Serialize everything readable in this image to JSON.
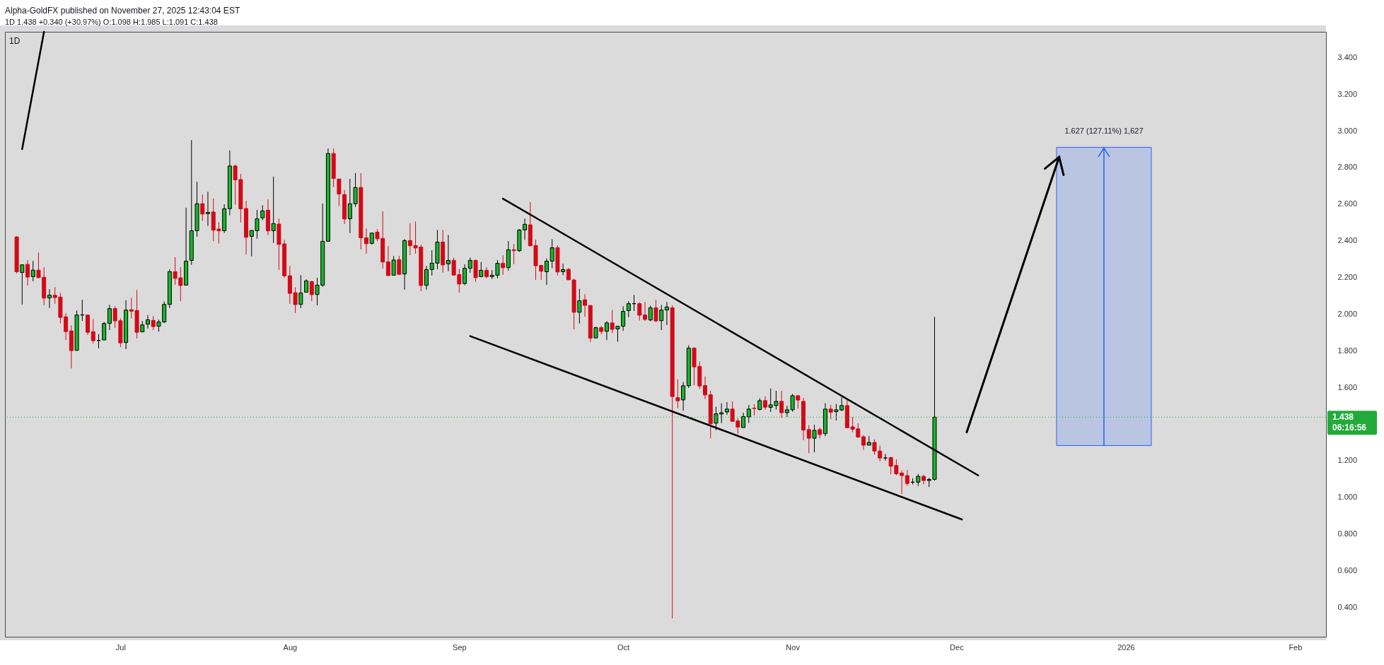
{
  "chart_data": {
    "type": "candlestick",
    "title": "Alpha-GoldFX published on November 27, 2025 12:43:04 EST",
    "subtitle": "1D 1.438 +0.340 (+30.97%) O:1.098 H:1.985 L:1.091 C:1.438",
    "annotations": [
      "1D",
      "06:16:56",
      {
        "text": "1.627 (127.11%) 1,627",
        "x": "2025-12-28",
        "y": 2.91
      }
    ],
    "colors": [
      "#d20a17",
      "#17b52a",
      "#d20a17",
      "#17b52a",
      "#d20a17",
      "#d20a17",
      "#17b52a",
      "#d20a17",
      "#d20a17",
      "#d20a17",
      "#d20a17",
      "#17b52a",
      "#17b52a",
      "#d20a17",
      "#d20a17",
      "#000000",
      "#17b52a",
      "#17b52a",
      "#d20a17",
      "#d20a17",
      "#17b52a",
      "#d20a17",
      "#d20a17",
      "#17b52a",
      "#17b52a",
      "#d20a17",
      "#17b52a",
      "#17b52a",
      "#17b52a",
      "#d20a17",
      "#d20a17",
      "#17b52a",
      "#17b52a",
      "#17b52a",
      "#d20a17",
      "#17b52a",
      "#d20a17",
      "#d20a17",
      "#17b52a",
      "#17b52a",
      "#d20a17",
      "#d20a17",
      "#d20a17",
      "#17b52a",
      "#17b52a",
      "#17b52a",
      "#d20a17",
      "#17b52a",
      "#d20a17",
      "#d20a17",
      "#d20a17",
      "#d20a17",
      "#17b52a",
      "#17b52a",
      "#d20a17",
      "#17b52a",
      "#17b52a",
      "#17b52a",
      "#d20a17",
      "#d20a17",
      "#d20a17",
      "#17b52a",
      "#17b52a",
      "#d20a17",
      "#d20a17",
      "#17b52a",
      "#d20a17",
      "#d20a17",
      "#d20a17",
      "#17b52a",
      "#d20a17",
      "#17b52a",
      "#d20a17",
      "#d20a17",
      "#d20a17",
      "#17b52a",
      "#17b52a",
      "#17b52a",
      "#d20a17",
      "#17b52a",
      "#d20a17",
      "#d20a17",
      "#17b52a",
      "#17b52a",
      "#d20a17",
      "#17b52a",
      "#d20a17",
      "#17b52a",
      "#17b52a",
      "#d20a17",
      "#17b52a",
      "#d20a17",
      "#17b52a",
      "#17b52a",
      "#d20a17",
      "#d20a17",
      "#d20a17",
      "#17b52a",
      "#17b52a",
      "#d20a17",
      "#17b52a",
      "#d20a17",
      "#d20a17",
      "#17b52a",
      "#d20a17",
      "#d20a17",
      "#17b52a",
      "#d20a17",
      "#17b52a",
      "#d20a17",
      "#17b52a",
      "#17b52a",
      "#17b52a",
      "#000000",
      "#d20a17",
      "#d20a17",
      "#17b52a",
      "#d20a17",
      "#17b52a",
      "#17b52a",
      "#d20a17",
      "#d20a17",
      "#17b52a",
      "#17b52a",
      "#d20a17",
      "#d20a17",
      "#d20a17",
      "#d20a17",
      "#17b52a",
      "#17b52a",
      "#17b52a",
      "#d20a17",
      "#d20a17",
      "#17b52a",
      "#17b52a",
      "#d20a17",
      "#17b52a",
      "#d20a17",
      "#17b52a",
      "#17b52a",
      "#d20a17",
      "#17b52a",
      "#17b52a",
      "#d20a17",
      "#d20a17",
      "#d20a17",
      "#17b52a",
      "#d20a17",
      "#17b52a",
      "#d20a17",
      "#17b52a",
      "#17b52a",
      "#d20a17",
      "#d20a17",
      "#d20a17",
      "#d20a17",
      "#17b52a",
      "#d20a17",
      "#d20a17",
      "#000000",
      "#d20a17",
      "#d20a17",
      "#d20a17",
      "#d20a17",
      "#000000",
      "#17b52a",
      "#d20a17",
      "#17b52a",
      "#17b52a"
    ],
    "xlim": [
      "2025-06-10T12:00",
      "2026-02-06"
    ],
    "xticks": [
      {
        "value": "2025-07-01",
        "label": "Jul"
      },
      {
        "value": "2025-08-01",
        "label": "Aug"
      },
      {
        "value": "2025-09-01",
        "label": "Sep"
      },
      {
        "value": "2025-10-01",
        "label": "Oct"
      },
      {
        "value": "2025-11-01",
        "label": "Nov"
      },
      {
        "value": "2025-12-01",
        "label": "Dec"
      },
      {
        "value": "2026-01-01",
        "label": "2026"
      },
      {
        "value": "2026-02-01",
        "label": "Feb"
      }
    ],
    "ylim": [
      0.24,
      3.54
    ],
    "yticks": [
      {
        "value": 0.4,
        "label": "0.400"
      },
      {
        "value": 0.6,
        "label": "0.600"
      },
      {
        "value": 0.8,
        "label": "0.800"
      },
      {
        "value": 1,
        "label": "1.000"
      },
      {
        "value": 1.2,
        "label": "1.200"
      },
      {
        "value": 1.6,
        "label": "1.600"
      },
      {
        "value": 1.8,
        "label": "1.800"
      },
      {
        "value": 2,
        "label": "2.000"
      },
      {
        "value": 2.2,
        "label": "2.200"
      },
      {
        "value": 2.4,
        "label": "2.400"
      },
      {
        "value": 2.6,
        "label": "2.600"
      },
      {
        "value": 2.8,
        "label": "2.800"
      },
      {
        "value": 3,
        "label": "3.000"
      },
      {
        "value": 3.2,
        "label": "3.200"
      },
      {
        "value": 3.4,
        "label": "3.400"
      }
    ],
    "x": [
      "2025-06-12",
      "2025-06-13",
      "2025-06-14",
      "2025-06-15",
      "2025-06-16",
      "2025-06-17",
      "2025-06-18",
      "2025-06-19",
      "2025-06-20",
      "2025-06-21",
      "2025-06-22",
      "2025-06-23",
      "2025-06-24",
      "2025-06-25",
      "2025-06-26",
      "2025-06-27",
      "2025-06-28",
      "2025-06-29",
      "2025-06-30",
      "2025-07-01",
      "2025-07-02",
      "2025-07-03",
      "2025-07-04",
      "2025-07-05",
      "2025-07-06",
      "2025-07-07",
      "2025-07-08",
      "2025-07-09",
      "2025-07-10",
      "2025-07-11",
      "2025-07-12",
      "2025-07-13",
      "2025-07-14",
      "2025-07-15",
      "2025-07-16",
      "2025-07-17",
      "2025-07-18",
      "2025-07-19",
      "2025-07-20",
      "2025-07-21",
      "2025-07-22",
      "2025-07-23",
      "2025-07-24",
      "2025-07-25",
      "2025-07-26",
      "2025-07-27",
      "2025-07-28",
      "2025-07-29",
      "2025-07-30",
      "2025-07-31",
      "2025-08-01",
      "2025-08-02",
      "2025-08-03",
      "2025-08-04",
      "2025-08-05",
      "2025-08-06",
      "2025-08-07",
      "2025-08-08",
      "2025-08-09",
      "2025-08-10",
      "2025-08-11",
      "2025-08-12",
      "2025-08-13",
      "2025-08-14",
      "2025-08-15",
      "2025-08-16",
      "2025-08-17",
      "2025-08-18",
      "2025-08-19",
      "2025-08-20",
      "2025-08-21",
      "2025-08-22",
      "2025-08-23",
      "2025-08-24",
      "2025-08-25",
      "2025-08-26",
      "2025-08-27",
      "2025-08-28",
      "2025-08-29",
      "2025-08-30",
      "2025-08-31",
      "2025-09-01",
      "2025-09-02",
      "2025-09-03",
      "2025-09-04",
      "2025-09-05",
      "2025-09-06",
      "2025-09-07",
      "2025-09-08",
      "2025-09-09",
      "2025-09-10",
      "2025-09-11",
      "2025-09-12",
      "2025-09-13",
      "2025-09-14",
      "2025-09-15",
      "2025-09-16",
      "2025-09-17",
      "2025-09-18",
      "2025-09-19",
      "2025-09-20",
      "2025-09-21",
      "2025-09-22",
      "2025-09-23",
      "2025-09-24",
      "2025-09-25",
      "2025-09-26",
      "2025-09-27",
      "2025-09-28",
      "2025-09-29",
      "2025-09-30",
      "2025-10-01",
      "2025-10-02",
      "2025-10-03",
      "2025-10-04",
      "2025-10-05",
      "2025-10-06",
      "2025-10-07",
      "2025-10-08",
      "2025-10-09",
      "2025-10-10",
      "2025-10-11",
      "2025-10-12",
      "2025-10-13",
      "2025-10-14",
      "2025-10-15",
      "2025-10-16",
      "2025-10-17",
      "2025-10-18",
      "2025-10-19",
      "2025-10-20",
      "2025-10-21",
      "2025-10-22",
      "2025-10-23",
      "2025-10-24",
      "2025-10-25",
      "2025-10-26",
      "2025-10-27",
      "2025-10-28",
      "2025-10-29",
      "2025-10-30",
      "2025-10-31",
      "2025-11-01",
      "2025-11-02",
      "2025-11-03",
      "2025-11-04",
      "2025-11-05",
      "2025-11-06",
      "2025-11-07",
      "2025-11-08",
      "2025-11-09",
      "2025-11-10",
      "2025-11-11",
      "2025-11-12",
      "2025-11-13",
      "2025-11-14",
      "2025-11-15",
      "2025-11-16",
      "2025-11-17",
      "2025-11-18",
      "2025-11-19",
      "2025-11-20",
      "2025-11-21",
      "2025-11-22",
      "2025-11-23",
      "2025-11-24",
      "2025-11-25",
      "2025-11-26",
      "2025-11-27"
    ],
    "ohlc": [
      [
        2.421,
        2.425,
        2.222,
        2.231
      ],
      [
        2.227,
        2.269,
        2.052,
        2.269
      ],
      [
        2.271,
        2.294,
        2.156,
        2.202
      ],
      [
        2.204,
        2.29,
        2.179,
        2.24
      ],
      [
        2.24,
        2.336,
        2.195,
        2.199
      ],
      [
        2.201,
        2.255,
        2.048,
        2.087
      ],
      [
        2.088,
        2.136,
        2.033,
        2.103
      ],
      [
        2.103,
        2.147,
        2.056,
        2.09
      ],
      [
        2.093,
        2.116,
        1.949,
        1.982
      ],
      [
        1.985,
        2.004,
        1.859,
        1.905
      ],
      [
        1.908,
        1.939,
        1.704,
        1.801
      ],
      [
        1.802,
        2.02,
        1.802,
        1.995
      ],
      [
        1.995,
        2.078,
        1.963,
        1.996
      ],
      [
        1.995,
        1.995,
        1.886,
        1.901
      ],
      [
        1.904,
        1.973,
        1.84,
        1.855
      ],
      [
        1.856,
        1.891,
        1.813,
        1.856
      ],
      [
        1.859,
        1.957,
        1.859,
        1.949
      ],
      [
        1.949,
        2.051,
        1.913,
        2.03
      ],
      [
        2.03,
        2.042,
        1.925,
        1.963
      ],
      [
        1.964,
        1.977,
        1.82,
        1.843
      ],
      [
        1.845,
        2.076,
        1.809,
        2.022
      ],
      [
        2.024,
        2.089,
        1.976,
        2.016
      ],
      [
        2.02,
        2.132,
        1.867,
        1.901
      ],
      [
        1.903,
        1.962,
        1.903,
        1.941
      ],
      [
        1.945,
        1.995,
        1.921,
        1.969
      ],
      [
        1.966,
        1.989,
        1.913,
        1.932
      ],
      [
        1.934,
        1.97,
        1.905,
        1.957
      ],
      [
        1.957,
        2.069,
        1.952,
        2.053
      ],
      [
        2.053,
        2.244,
        2.033,
        2.231
      ],
      [
        2.231,
        2.31,
        2.16,
        2.195
      ],
      [
        2.198,
        2.255,
        2.071,
        2.156
      ],
      [
        2.158,
        2.58,
        2.158,
        2.289
      ],
      [
        2.293,
        2.949,
        2.269,
        2.455
      ],
      [
        2.455,
        2.722,
        2.423,
        2.602
      ],
      [
        2.602,
        2.652,
        2.508,
        2.546
      ],
      [
        2.548,
        2.667,
        2.481,
        2.555
      ],
      [
        2.557,
        2.63,
        2.398,
        2.458
      ],
      [
        2.464,
        2.501,
        2.384,
        2.454
      ],
      [
        2.455,
        2.599,
        2.443,
        2.575
      ],
      [
        2.575,
        2.893,
        2.539,
        2.808
      ],
      [
        2.808,
        2.816,
        2.597,
        2.732
      ],
      [
        2.734,
        2.765,
        2.5,
        2.574
      ],
      [
        2.576,
        2.618,
        2.325,
        2.419
      ],
      [
        2.424,
        2.459,
        2.315,
        2.456
      ],
      [
        2.455,
        2.568,
        2.411,
        2.52
      ],
      [
        2.525,
        2.594,
        2.512,
        2.563
      ],
      [
        2.567,
        2.626,
        2.431,
        2.454
      ],
      [
        2.455,
        2.75,
        2.388,
        2.494
      ],
      [
        2.491,
        2.521,
        2.241,
        2.38
      ],
      [
        2.383,
        2.405,
        2.199,
        2.209
      ],
      [
        2.209,
        2.263,
        2.056,
        2.113
      ],
      [
        2.117,
        2.146,
        2.006,
        2.052
      ],
      [
        2.053,
        2.213,
        2.033,
        2.115
      ],
      [
        2.119,
        2.19,
        2.119,
        2.181
      ],
      [
        2.177,
        2.182,
        2.071,
        2.106
      ],
      [
        2.107,
        2.198,
        2.048,
        2.158
      ],
      [
        2.158,
        2.603,
        2.149,
        2.397
      ],
      [
        2.397,
        2.904,
        2.397,
        2.876
      ],
      [
        2.876,
        2.904,
        2.693,
        2.74
      ],
      [
        2.737,
        2.737,
        2.589,
        2.655
      ],
      [
        2.652,
        2.677,
        2.492,
        2.519
      ],
      [
        2.52,
        2.738,
        2.442,
        2.602
      ],
      [
        2.602,
        2.769,
        2.585,
        2.691
      ],
      [
        2.691,
        2.769,
        2.353,
        2.416
      ],
      [
        2.416,
        2.467,
        2.33,
        2.384
      ],
      [
        2.386,
        2.442,
        2.38,
        2.442
      ],
      [
        2.447,
        2.464,
        2.398,
        2.411
      ],
      [
        2.413,
        2.561,
        2.249,
        2.284
      ],
      [
        2.285,
        2.371,
        2.21,
        2.21
      ],
      [
        2.212,
        2.317,
        2.212,
        2.295
      ],
      [
        2.297,
        2.317,
        2.214,
        2.217
      ],
      [
        2.219,
        2.409,
        2.133,
        2.401
      ],
      [
        2.401,
        2.495,
        2.322,
        2.373
      ],
      [
        2.374,
        2.505,
        2.33,
        2.361
      ],
      [
        2.366,
        2.378,
        2.125,
        2.156
      ],
      [
        2.157,
        2.263,
        2.133,
        2.243
      ],
      [
        2.243,
        2.348,
        2.21,
        2.278
      ],
      [
        2.278,
        2.459,
        2.245,
        2.393
      ],
      [
        2.393,
        2.459,
        2.226,
        2.268
      ],
      [
        2.274,
        2.432,
        2.234,
        2.293
      ],
      [
        2.293,
        2.308,
        2.209,
        2.213
      ],
      [
        2.216,
        2.246,
        2.118,
        2.164
      ],
      [
        2.167,
        2.271,
        2.158,
        2.25
      ],
      [
        2.25,
        2.308,
        2.226,
        2.293
      ],
      [
        2.293,
        2.298,
        2.176,
        2.199
      ],
      [
        2.204,
        2.284,
        2.204,
        2.239
      ],
      [
        2.239,
        2.256,
        2.195,
        2.204
      ],
      [
        2.204,
        2.24,
        2.192,
        2.212
      ],
      [
        2.212,
        2.295,
        2.195,
        2.277
      ],
      [
        2.277,
        2.321,
        2.214,
        2.253
      ],
      [
        2.254,
        2.398,
        2.237,
        2.351
      ],
      [
        2.351,
        2.383,
        2.272,
        2.346
      ],
      [
        2.346,
        2.464,
        2.339,
        2.459
      ],
      [
        2.459,
        2.521,
        2.405,
        2.49
      ],
      [
        2.487,
        2.611,
        2.369,
        2.373
      ],
      [
        2.374,
        2.406,
        2.187,
        2.264
      ],
      [
        2.266,
        2.266,
        2.187,
        2.234
      ],
      [
        2.231,
        2.304,
        2.16,
        2.289
      ],
      [
        2.289,
        2.409,
        2.25,
        2.362
      ],
      [
        2.362,
        2.375,
        2.212,
        2.23
      ],
      [
        2.231,
        2.275,
        2.212,
        2.243
      ],
      [
        2.244,
        2.252,
        2.187,
        2.187
      ],
      [
        2.186,
        2.194,
        1.917,
        2.01
      ],
      [
        2.01,
        2.138,
        1.949,
        2.073
      ],
      [
        2.078,
        2.109,
        1.986,
        2.048
      ],
      [
        2.047,
        2.047,
        1.849,
        1.869
      ],
      [
        1.87,
        1.931,
        1.87,
        1.926
      ],
      [
        1.926,
        1.935,
        1.89,
        1.905
      ],
      [
        1.906,
        1.962,
        1.859,
        1.952
      ],
      [
        1.952,
        2.022,
        1.896,
        1.917
      ],
      [
        1.919,
        1.934,
        1.849,
        1.934
      ],
      [
        1.934,
        2.043,
        1.909,
        2.015
      ],
      [
        2.019,
        2.07,
        1.983,
        2.057
      ],
      [
        2.057,
        2.105,
        2.017,
        2.057
      ],
      [
        2.057,
        2.065,
        1.965,
        1.994
      ],
      [
        1.995,
        2.066,
        1.963,
        1.971
      ],
      [
        1.968,
        2.047,
        1.961,
        2.034
      ],
      [
        2.034,
        2.078,
        1.956,
        1.963
      ],
      [
        1.964,
        2.05,
        1.913,
        2.022
      ],
      [
        2.022,
        2.066,
        1.94,
        2.039
      ],
      [
        2.034,
        2.047,
        0.34,
        1.55
      ],
      [
        1.544,
        1.645,
        1.486,
        1.527
      ],
      [
        1.532,
        1.63,
        1.473,
        1.609
      ],
      [
        1.609,
        1.83,
        1.597,
        1.814
      ],
      [
        1.814,
        1.819,
        1.612,
        1.712
      ],
      [
        1.714,
        1.742,
        1.592,
        1.608
      ],
      [
        1.61,
        1.66,
        1.536,
        1.559
      ],
      [
        1.56,
        1.582,
        1.322,
        1.402
      ],
      [
        1.405,
        1.495,
        1.366,
        1.456
      ],
      [
        1.455,
        1.514,
        1.405,
        1.462
      ],
      [
        1.466,
        1.52,
        1.45,
        1.482
      ],
      [
        1.482,
        1.524,
        1.415,
        1.415
      ],
      [
        1.417,
        1.433,
        1.347,
        1.384
      ],
      [
        1.381,
        1.462,
        1.381,
        1.441
      ],
      [
        1.439,
        1.504,
        1.407,
        1.482
      ],
      [
        1.487,
        1.508,
        1.447,
        1.485
      ],
      [
        1.48,
        1.541,
        1.475,
        1.528
      ],
      [
        1.528,
        1.551,
        1.478,
        1.492
      ],
      [
        1.491,
        1.594,
        1.466,
        1.505
      ],
      [
        1.501,
        1.582,
        1.479,
        1.524
      ],
      [
        1.524,
        1.582,
        1.434,
        1.462
      ],
      [
        1.462,
        1.5,
        1.439,
        1.478
      ],
      [
        1.478,
        1.564,
        1.468,
        1.555
      ],
      [
        1.555,
        1.555,
        1.484,
        1.531
      ],
      [
        1.524,
        1.543,
        1.312,
        1.367
      ],
      [
        1.37,
        1.394,
        1.241,
        1.323
      ],
      [
        1.323,
        1.396,
        1.246,
        1.366
      ],
      [
        1.37,
        1.38,
        1.323,
        1.343
      ],
      [
        1.348,
        1.514,
        1.334,
        1.482
      ],
      [
        1.482,
        1.505,
        1.426,
        1.465
      ],
      [
        1.468,
        1.51,
        1.42,
        1.478
      ],
      [
        1.477,
        1.546,
        1.471,
        1.501
      ],
      [
        1.501,
        1.537,
        1.38,
        1.38
      ],
      [
        1.385,
        1.439,
        1.356,
        1.372
      ],
      [
        1.374,
        1.404,
        1.326,
        1.329
      ],
      [
        1.331,
        1.34,
        1.259,
        1.285
      ],
      [
        1.285,
        1.335,
        1.285,
        1.3
      ],
      [
        1.3,
        1.316,
        1.233,
        1.253
      ],
      [
        1.253,
        1.282,
        1.198,
        1.215
      ],
      [
        1.215,
        1.237,
        1.2,
        1.215
      ],
      [
        1.218,
        1.22,
        1.126,
        1.17
      ],
      [
        1.174,
        1.208,
        1.121,
        1.129
      ],
      [
        1.133,
        1.147,
        1.018,
        1.119
      ],
      [
        1.119,
        1.15,
        1.063,
        1.076
      ],
      [
        1.083,
        1.105,
        1.071,
        1.083
      ],
      [
        1.083,
        1.128,
        1.063,
        1.115
      ],
      [
        1.115,
        1.124,
        1.072,
        1.092
      ],
      [
        1.092,
        1.107,
        1.057,
        1.098
      ],
      [
        1.098,
        1.985,
        1.091,
        1.438
      ]
    ],
    "series": [
      {
        "type": "line",
        "color": "#000000",
        "x": [
          "2025-06-13",
          "2025-06-17"
        ],
        "values": [
          2.9,
          3.54
        ]
      },
      {
        "type": "line",
        "color": "#000000",
        "x": [
          "2025-09-09",
          "2025-12-05"
        ],
        "values": [
          2.63,
          1.12
        ]
      },
      {
        "type": "line",
        "color": "#000000",
        "x": [
          "2025-09-03",
          "2025-12-02"
        ],
        "values": [
          1.88,
          0.88
        ]
      },
      {
        "type": "bar",
        "color": "#bac5e1",
        "x": [
          "2025-12-28"
        ],
        "values": [
          1.627
        ],
        "base": [
          1.283
        ]
      }
    ],
    "ref_lines": [
      {
        "axis": "y",
        "value": 1.438,
        "label": "1.438",
        "color": "#22ab3b",
        "line_style": "dotted"
      }
    ]
  }
}
